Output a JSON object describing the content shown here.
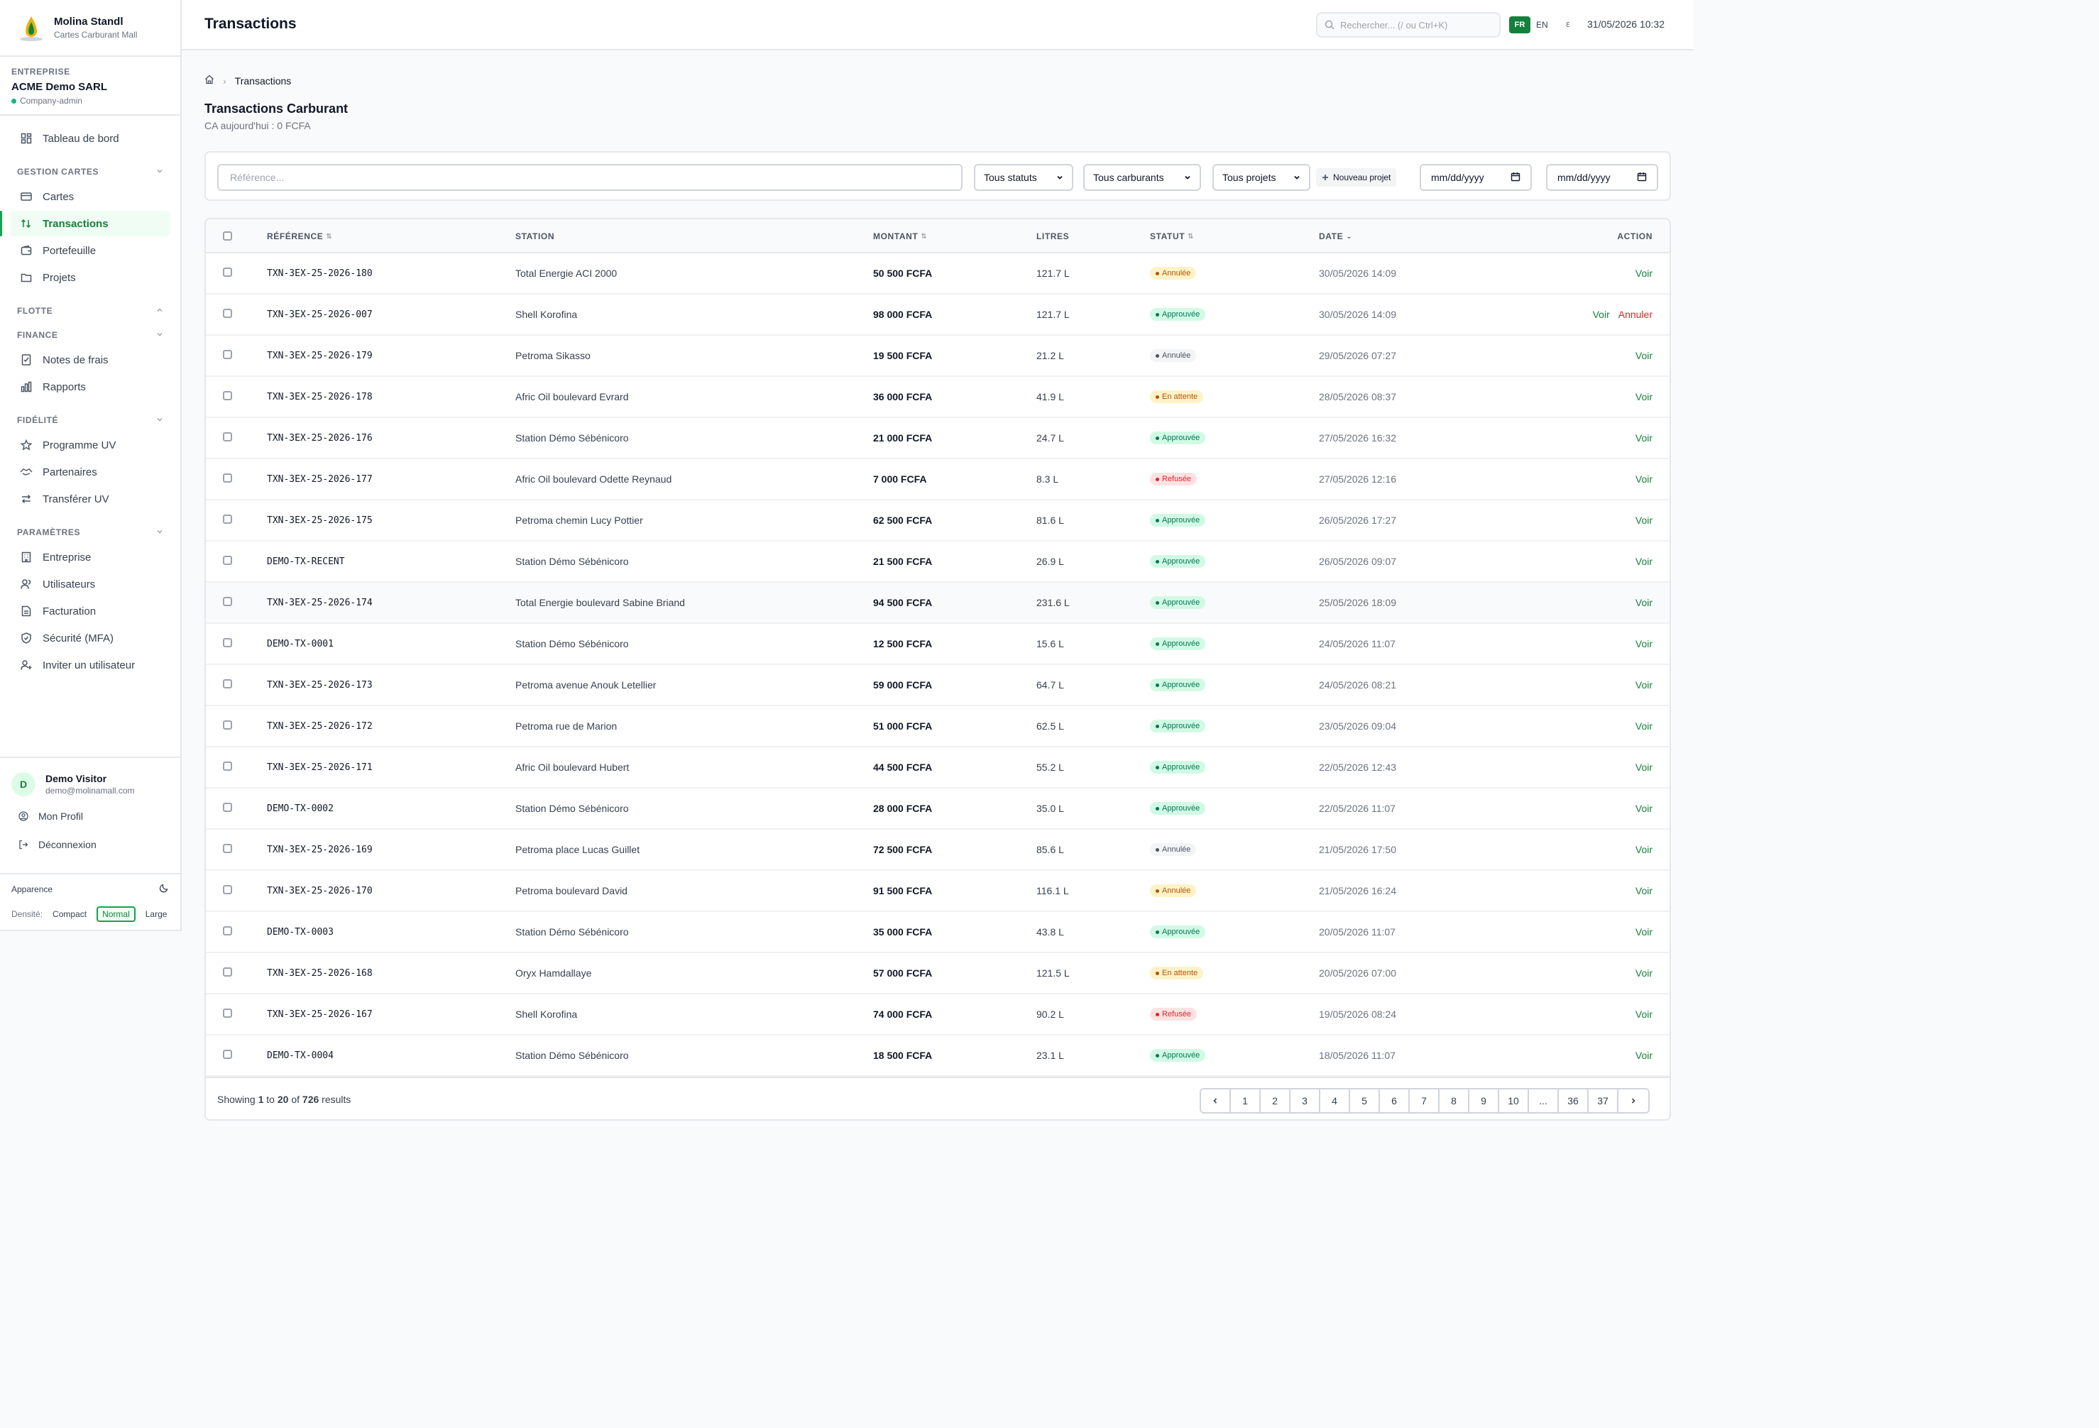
{
  "brand": {
    "name": "Molina Standl",
    "subtitle": "Cartes Carburant Mall"
  },
  "company": {
    "label": "ENTREPRISE",
    "name": "ACME Demo SARL",
    "role": "Company-admin"
  },
  "nav": {
    "dashboard": "Tableau de bord",
    "groups": {
      "cards": "GESTION CARTES",
      "fleet": "FLOTTE",
      "finance": "FINANCE",
      "loyalty": "FIDÉLITÉ",
      "settings": "PARAMÈTRES"
    },
    "items": {
      "cartes": "Cartes",
      "transactions": "Transactions",
      "portefeuille": "Portefeuille",
      "projets": "Projets",
      "notes": "Notes de frais",
      "rapports": "Rapports",
      "programme": "Programme UV",
      "partenaires": "Partenaires",
      "transferer": "Transférer UV",
      "entreprise": "Entreprise",
      "utilisateurs": "Utilisateurs",
      "facturation": "Facturation",
      "securite": "Sécurité (MFA)",
      "inviter": "Inviter un utilisateur"
    }
  },
  "user": {
    "initial": "D",
    "name": "Demo Visitor",
    "email": "demo@molinamall.com",
    "profile": "Mon Profil",
    "logout": "Déconnexion"
  },
  "appearance": {
    "label": "Apparence",
    "density_label": "Densité:",
    "compact": "Compact",
    "normal": "Normal",
    "large": "Large"
  },
  "topbar": {
    "title": "Transactions",
    "search_placeholder": "Rechercher... (/ ou Ctrl+K)",
    "lang_fr": "FR",
    "lang_en": "EN",
    "lang_extra": "ε",
    "datetime": "31/05/2026 10:32"
  },
  "breadcrumb": {
    "current": "Transactions"
  },
  "page": {
    "title": "Transactions Carburant",
    "subtitle": "CA aujourd'hui : 0 FCFA"
  },
  "filters": {
    "reference_placeholder": "Référence...",
    "status": "Tous statuts",
    "fuel": "Tous carburants",
    "project": "Tous projets",
    "new_project": "Nouveau projet",
    "date_from": "mm/dd/yyyy",
    "date_to": "mm/dd/yyyy"
  },
  "table": {
    "columns": {
      "reference": "RÉFÉRENCE",
      "station": "STATION",
      "montant": "MONTANT",
      "litres": "LITRES",
      "statut": "STATUT",
      "date": "DATE",
      "action": "ACTION"
    },
    "action_view": "Voir",
    "action_cancel": "Annuler",
    "rows": [
      {
        "ref": "TXN-3EX-25-2026-180",
        "station": "Total Energie ACI 2000",
        "amount": "50 500 FCFA",
        "liters": "121.7 L",
        "status": "Annulée",
        "status_key": "annulee",
        "date": "30/05/2026 14:09",
        "cancel": false
      },
      {
        "ref": "TXN-3EX-25-2026-007",
        "station": "Shell Korofina",
        "amount": "98 000 FCFA",
        "liters": "121.7 L",
        "status": "Approuvée",
        "status_key": "approuvee",
        "date": "30/05/2026 14:09",
        "cancel": true
      },
      {
        "ref": "TXN-3EX-25-2026-179",
        "station": "Petroma Sikasso",
        "amount": "19 500 FCFA",
        "liters": "21.2 L",
        "status": "Annulée",
        "status_key": "annulee-gray",
        "date": "29/05/2026 07:27",
        "cancel": false
      },
      {
        "ref": "TXN-3EX-25-2026-178",
        "station": "Afric Oil boulevard Evrard",
        "amount": "36 000 FCFA",
        "liters": "41.9 L",
        "status": "En attente",
        "status_key": "attente",
        "date": "28/05/2026 08:37",
        "cancel": false
      },
      {
        "ref": "TXN-3EX-25-2026-176",
        "station": "Station Démo Sébénicoro",
        "amount": "21 000 FCFA",
        "liters": "24.7 L",
        "status": "Approuvée",
        "status_key": "approuvee",
        "date": "27/05/2026 16:32",
        "cancel": false
      },
      {
        "ref": "TXN-3EX-25-2026-177",
        "station": "Afric Oil boulevard Odette Reynaud",
        "amount": "7 000 FCFA",
        "liters": "8.3 L",
        "status": "Refusée",
        "status_key": "refusee",
        "date": "27/05/2026 12:16",
        "cancel": false
      },
      {
        "ref": "TXN-3EX-25-2026-175",
        "station": "Petroma chemin Lucy Pottier",
        "amount": "62 500 FCFA",
        "liters": "81.6 L",
        "status": "Approuvée",
        "status_key": "approuvee",
        "date": "26/05/2026 17:27",
        "cancel": false
      },
      {
        "ref": "DEMO-TX-RECENT",
        "station": "Station Démo Sébénicoro",
        "amount": "21 500 FCFA",
        "liters": "26.9 L",
        "status": "Approuvée",
        "status_key": "approuvee",
        "date": "26/05/2026 09:07",
        "cancel": false
      },
      {
        "ref": "TXN-3EX-25-2026-174",
        "station": "Total Energie boulevard Sabine Briand",
        "amount": "94 500 FCFA",
        "liters": "231.6 L",
        "status": "Approuvée",
        "status_key": "approuvee",
        "date": "25/05/2026 18:09",
        "cancel": false
      },
      {
        "ref": "DEMO-TX-0001",
        "station": "Station Démo Sébénicoro",
        "amount": "12 500 FCFA",
        "liters": "15.6 L",
        "status": "Approuvée",
        "status_key": "approuvee",
        "date": "24/05/2026 11:07",
        "cancel": false
      },
      {
        "ref": "TXN-3EX-25-2026-173",
        "station": "Petroma avenue Anouk Letellier",
        "amount": "59 000 FCFA",
        "liters": "64.7 L",
        "status": "Approuvée",
        "status_key": "approuvee",
        "date": "24/05/2026 08:21",
        "cancel": false
      },
      {
        "ref": "TXN-3EX-25-2026-172",
        "station": "Petroma rue de Marion",
        "amount": "51 000 FCFA",
        "liters": "62.5 L",
        "status": "Approuvée",
        "status_key": "approuvee",
        "date": "23/05/2026 09:04",
        "cancel": false
      },
      {
        "ref": "TXN-3EX-25-2026-171",
        "station": "Afric Oil boulevard Hubert",
        "amount": "44 500 FCFA",
        "liters": "55.2 L",
        "status": "Approuvée",
        "status_key": "approuvee",
        "date": "22/05/2026 12:43",
        "cancel": false
      },
      {
        "ref": "DEMO-TX-0002",
        "station": "Station Démo Sébénicoro",
        "amount": "28 000 FCFA",
        "liters": "35.0 L",
        "status": "Approuvée",
        "status_key": "approuvee",
        "date": "22/05/2026 11:07",
        "cancel": false
      },
      {
        "ref": "TXN-3EX-25-2026-169",
        "station": "Petroma place Lucas Guillet",
        "amount": "72 500 FCFA",
        "liters": "85.6 L",
        "status": "Annulée",
        "status_key": "annulee-gray",
        "date": "21/05/2026 17:50",
        "cancel": false
      },
      {
        "ref": "TXN-3EX-25-2026-170",
        "station": "Petroma boulevard David",
        "amount": "91 500 FCFA",
        "liters": "116.1 L",
        "status": "Annulée",
        "status_key": "annulee",
        "date": "21/05/2026 16:24",
        "cancel": false
      },
      {
        "ref": "DEMO-TX-0003",
        "station": "Station Démo Sébénicoro",
        "amount": "35 000 FCFA",
        "liters": "43.8 L",
        "status": "Approuvée",
        "status_key": "approuvee",
        "date": "20/05/2026 11:07",
        "cancel": false
      },
      {
        "ref": "TXN-3EX-25-2026-168",
        "station": "Oryx Hamdallaye",
        "amount": "57 000 FCFA",
        "liters": "121.5 L",
        "status": "En attente",
        "status_key": "attente",
        "date": "20/05/2026 07:00",
        "cancel": false
      },
      {
        "ref": "TXN-3EX-25-2026-167",
        "station": "Shell Korofina",
        "amount": "74 000 FCFA",
        "liters": "90.2 L",
        "status": "Refusée",
        "status_key": "refusee",
        "date": "19/05/2026 08:24",
        "cancel": false
      },
      {
        "ref": "DEMO-TX-0004",
        "station": "Station Démo Sébénicoro",
        "amount": "18 500 FCFA",
        "liters": "23.1 L",
        "status": "Approuvée",
        "status_key": "approuvee",
        "date": "18/05/2026 11:07",
        "cancel": false
      }
    ]
  },
  "pagination": {
    "info_prefix": "Showing",
    "from": "1",
    "to_word": "to",
    "to": "20",
    "of_word": "of",
    "total": "726",
    "suffix": "results",
    "pages": [
      "1",
      "2",
      "3",
      "4",
      "5",
      "6",
      "7",
      "8",
      "9",
      "10",
      "...",
      "36",
      "37"
    ]
  },
  "colors": {
    "accent": "#15803d",
    "danger": "#dc2626",
    "warning": "#b45309"
  }
}
